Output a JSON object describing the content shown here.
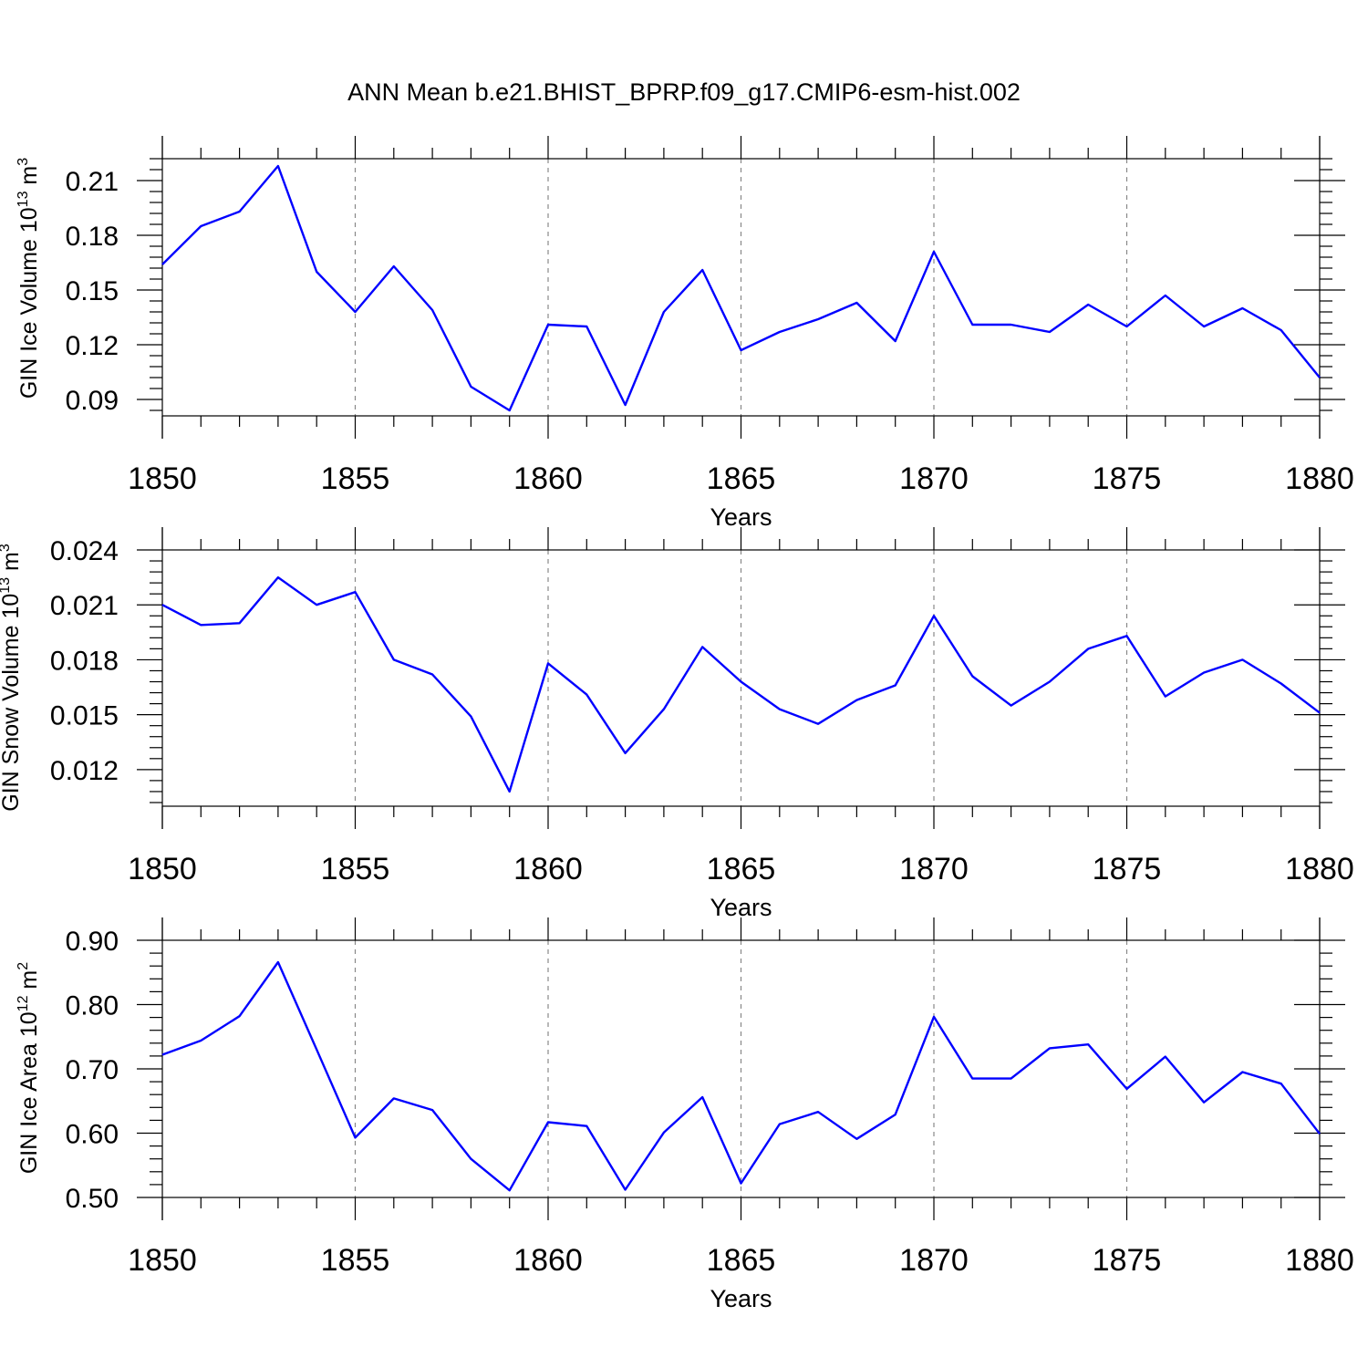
{
  "title": "ANN Mean b.e21.BHIST_BPRP.f09_g17.CMIP6-esm-hist.002",
  "colors": {
    "line": "#0000ff",
    "grid": "#888888"
  },
  "chart_data": [
    {
      "type": "line",
      "xlabel": "Years",
      "ylabel": "GIN Ice Volume 10",
      "ylabel_exp": "13",
      "ylabel_unit": "m",
      "ylabel_unit_exp": "3",
      "xlim": [
        1850,
        1880
      ],
      "ylim": [
        0.081,
        0.222
      ],
      "xticks": [
        "1850",
        "1855",
        "1860",
        "1865",
        "1870",
        "1875",
        "1880"
      ],
      "yticks": [
        "0.09",
        "0.12",
        "0.15",
        "0.18",
        "0.21"
      ],
      "ytick_values": [
        0.09,
        0.12,
        0.15,
        0.18,
        0.21
      ],
      "grid": "x-dashed",
      "x": [
        1850,
        1851,
        1852,
        1853,
        1854,
        1855,
        1856,
        1857,
        1858,
        1859,
        1860,
        1861,
        1862,
        1863,
        1864,
        1865,
        1866,
        1867,
        1868,
        1869,
        1870,
        1871,
        1872,
        1873,
        1874,
        1875,
        1876,
        1877,
        1878,
        1879,
        1880
      ],
      "values": [
        0.164,
        0.185,
        0.193,
        0.218,
        0.16,
        0.138,
        0.163,
        0.139,
        0.097,
        0.084,
        0.131,
        0.13,
        0.087,
        0.138,
        0.161,
        0.117,
        0.127,
        0.134,
        0.143,
        0.122,
        0.171,
        0.131,
        0.131,
        0.127,
        0.142,
        0.13,
        0.147,
        0.13,
        0.14,
        0.128,
        0.102
      ]
    },
    {
      "type": "line",
      "xlabel": "Years",
      "ylabel": "GIN Snow Volume 10",
      "ylabel_exp": "13",
      "ylabel_unit": "m",
      "ylabel_unit_exp": "3",
      "xlim": [
        1850,
        1880
      ],
      "ylim": [
        0.01,
        0.024
      ],
      "xticks": [
        "1850",
        "1855",
        "1860",
        "1865",
        "1870",
        "1875",
        "1880"
      ],
      "yticks": [
        "0.012",
        "0.015",
        "0.018",
        "0.021",
        "0.024"
      ],
      "ytick_values": [
        0.012,
        0.015,
        0.018,
        0.021,
        0.024
      ],
      "grid": "x-dashed",
      "x": [
        1850,
        1851,
        1852,
        1853,
        1854,
        1855,
        1856,
        1857,
        1858,
        1859,
        1860,
        1861,
        1862,
        1863,
        1864,
        1865,
        1866,
        1867,
        1868,
        1869,
        1870,
        1871,
        1872,
        1873,
        1874,
        1875,
        1876,
        1877,
        1878,
        1879,
        1880
      ],
      "values": [
        0.021,
        0.0199,
        0.02,
        0.0225,
        0.021,
        0.0217,
        0.018,
        0.0172,
        0.0149,
        0.0108,
        0.0178,
        0.0161,
        0.0129,
        0.0153,
        0.0187,
        0.0168,
        0.0153,
        0.0145,
        0.0158,
        0.0166,
        0.0204,
        0.0171,
        0.0155,
        0.0168,
        0.0186,
        0.0193,
        0.016,
        0.0173,
        0.018,
        0.0167,
        0.0151
      ]
    },
    {
      "type": "line",
      "xlabel": "Years",
      "ylabel": "GIN Ice Area 10",
      "ylabel_exp": "12",
      "ylabel_unit": "m",
      "ylabel_unit_exp": "2",
      "xlim": [
        1850,
        1880
      ],
      "ylim": [
        0.5,
        0.9
      ],
      "xticks": [
        "1850",
        "1855",
        "1860",
        "1865",
        "1870",
        "1875",
        "1880"
      ],
      "yticks": [
        "0.50",
        "0.60",
        "0.70",
        "0.80",
        "0.90"
      ],
      "ytick_values": [
        0.5,
        0.6,
        0.7,
        0.8,
        0.9
      ],
      "grid": "x-dashed",
      "x": [
        1850,
        1851,
        1852,
        1853,
        1854,
        1855,
        1856,
        1857,
        1858,
        1859,
        1860,
        1861,
        1862,
        1863,
        1864,
        1865,
        1866,
        1867,
        1868,
        1869,
        1870,
        1871,
        1872,
        1873,
        1874,
        1875,
        1876,
        1877,
        1878,
        1879,
        1880
      ],
      "values": [
        0.722,
        0.744,
        0.782,
        0.866,
        0.73,
        0.593,
        0.654,
        0.636,
        0.56,
        0.511,
        0.617,
        0.611,
        0.512,
        0.601,
        0.656,
        0.522,
        0.614,
        0.633,
        0.591,
        0.629,
        0.781,
        0.685,
        0.685,
        0.732,
        0.738,
        0.669,
        0.719,
        0.648,
        0.695,
        0.677,
        0.599
      ]
    }
  ]
}
